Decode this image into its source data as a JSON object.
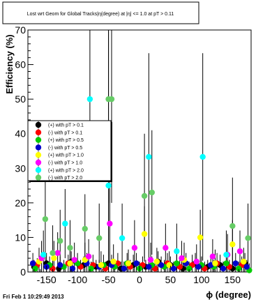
{
  "footer_timestamp": "Fri Feb  1 10:29:49 2013",
  "chart_data": {
    "type": "scatter",
    "title": "Lost wrt Geom for Global Tracks|η(degree) at |η| <= 1.0 at pT > 0.11",
    "xlabel": "ϕ (degree)",
    "ylabel": "Efficiency (%)",
    "xlim": [
      -180,
      180
    ],
    "ylim": [
      0,
      70
    ],
    "x_ticks": [
      -150,
      -100,
      -50,
      0,
      50,
      100,
      150
    ],
    "y_ticks": [
      0,
      10,
      20,
      30,
      40,
      50,
      60,
      70
    ],
    "grid": false,
    "legend_position": "left",
    "series": [
      {
        "name": "(+) with pT > 0.1",
        "color": "#000000",
        "points": [
          {
            "x": -170,
            "y": 1.5,
            "err": 2.0
          },
          {
            "x": -150,
            "y": 2.5,
            "err": 3.0
          },
          {
            "x": -130,
            "y": 1.0,
            "err": 2.0
          },
          {
            "x": -110,
            "y": 3.0,
            "err": 3.0
          },
          {
            "x": -90,
            "y": 2.0,
            "err": 2.5
          },
          {
            "x": -70,
            "y": 1.5,
            "err": 2.0
          },
          {
            "x": -50,
            "y": 2.5,
            "err": 67.0
          },
          {
            "x": -30,
            "y": 1.0,
            "err": 2.0
          },
          {
            "x": -10,
            "y": 2.0,
            "err": 3.0
          },
          {
            "x": 10,
            "y": 1.5,
            "err": 2.0
          },
          {
            "x": 30,
            "y": 3.0,
            "err": 3.0
          },
          {
            "x": 50,
            "y": 2.0,
            "err": 2.5
          },
          {
            "x": 70,
            "y": 1.0,
            "err": 2.0
          },
          {
            "x": 90,
            "y": 2.5,
            "err": 3.0
          },
          {
            "x": 110,
            "y": 1.5,
            "err": 2.0
          },
          {
            "x": 130,
            "y": 2.0,
            "err": 3.0
          },
          {
            "x": 150,
            "y": 1.0,
            "err": 2.0
          },
          {
            "x": 170,
            "y": 2.5,
            "err": 3.0
          }
        ]
      },
      {
        "name": "(-) with pT > 0.1",
        "color": "#ff0000",
        "points": [
          {
            "x": -165,
            "y": 2.0,
            "err": 2.0
          },
          {
            "x": -140,
            "y": 1.0,
            "err": 2.0
          },
          {
            "x": -115,
            "y": 2.5,
            "err": 2.5
          },
          {
            "x": -95,
            "y": 1.5,
            "err": 2.0
          },
          {
            "x": -75,
            "y": 2.0,
            "err": 3.0
          },
          {
            "x": -55,
            "y": 1.0,
            "err": 2.0
          },
          {
            "x": -35,
            "y": 2.5,
            "err": 3.0
          },
          {
            "x": -15,
            "y": 1.5,
            "err": 2.0
          },
          {
            "x": 5,
            "y": 2.0,
            "err": 2.5
          },
          {
            "x": 25,
            "y": 1.0,
            "err": 2.0
          },
          {
            "x": 45,
            "y": 2.5,
            "err": 3.0
          },
          {
            "x": 65,
            "y": 1.5,
            "err": 2.0
          },
          {
            "x": 85,
            "y": 2.0,
            "err": 3.0
          },
          {
            "x": 105,
            "y": 1.0,
            "err": 2.0
          },
          {
            "x": 125,
            "y": 2.5,
            "err": 3.0
          },
          {
            "x": 145,
            "y": 1.5,
            "err": 2.0
          },
          {
            "x": 165,
            "y": 2.0,
            "err": 2.5
          }
        ]
      },
      {
        "name": "(+) with pT > 0.5",
        "color": "#00cc00",
        "points": [
          {
            "x": -168,
            "y": 1.0,
            "err": 2.0
          },
          {
            "x": -145,
            "y": 2.0,
            "err": 2.5
          },
          {
            "x": -122,
            "y": 1.5,
            "err": 2.0
          },
          {
            "x": -100,
            "y": 2.5,
            "err": 3.0
          },
          {
            "x": -78,
            "y": 1.0,
            "err": 2.0
          },
          {
            "x": -58,
            "y": 2.0,
            "err": 3.0
          },
          {
            "x": -40,
            "y": 1.5,
            "err": 2.0
          },
          {
            "x": -20,
            "y": 2.5,
            "err": 3.0
          },
          {
            "x": 0,
            "y": 1.0,
            "err": 2.0
          },
          {
            "x": 20,
            "y": 2.0,
            "err": 2.5
          },
          {
            "x": 40,
            "y": 1.5,
            "err": 2.0
          },
          {
            "x": 60,
            "y": 2.5,
            "err": 3.0
          },
          {
            "x": 80,
            "y": 1.0,
            "err": 2.0
          },
          {
            "x": 100,
            "y": 2.0,
            "err": 2.5
          },
          {
            "x": 120,
            "y": 1.5,
            "err": 2.0
          },
          {
            "x": 140,
            "y": 2.5,
            "err": 3.0
          },
          {
            "x": 160,
            "y": 1.0,
            "err": 2.0
          },
          {
            "x": 177,
            "y": 0.5,
            "err": 2.0
          }
        ]
      },
      {
        "name": "(-) with pT > 0.5",
        "color": "#0000cc",
        "points": [
          {
            "x": -172,
            "y": 2.5,
            "err": 3.0
          },
          {
            "x": -150,
            "y": 1.5,
            "err": 2.0
          },
          {
            "x": -128,
            "y": 2.0,
            "err": 2.5
          },
          {
            "x": -108,
            "y": 1.0,
            "err": 2.0
          },
          {
            "x": -85,
            "y": 2.5,
            "err": 3.0
          },
          {
            "x": -65,
            "y": 1.5,
            "err": 2.0
          },
          {
            "x": -45,
            "y": 2.0,
            "err": 3.0
          },
          {
            "x": -25,
            "y": 1.0,
            "err": 2.0
          },
          {
            "x": -5,
            "y": 2.5,
            "err": 3.0
          },
          {
            "x": 15,
            "y": 1.5,
            "err": 2.0
          },
          {
            "x": 35,
            "y": 2.0,
            "err": 2.5
          },
          {
            "x": 55,
            "y": 1.0,
            "err": 2.0
          },
          {
            "x": 75,
            "y": 2.5,
            "err": 3.0
          },
          {
            "x": 95,
            "y": 1.5,
            "err": 2.0
          },
          {
            "x": 115,
            "y": 2.0,
            "err": 3.0
          },
          {
            "x": 135,
            "y": 1.0,
            "err": 2.0
          },
          {
            "x": 155,
            "y": 2.5,
            "err": 3.0
          },
          {
            "x": 173,
            "y": 1.5,
            "err": 2.0
          }
        ]
      },
      {
        "name": "(+) with pT > 1.0",
        "color": "#ffff00",
        "points": [
          {
            "x": -162,
            "y": 3.0,
            "err": 4.0
          },
          {
            "x": -138,
            "y": 4.0,
            "err": 5.0
          },
          {
            "x": -112,
            "y": 2.5,
            "err": 4.0
          },
          {
            "x": -88,
            "y": 3.5,
            "err": 5.0
          },
          {
            "x": -62,
            "y": 2.0,
            "err": 4.0
          },
          {
            "x": -42,
            "y": 3.0,
            "err": 5.0
          },
          {
            "x": -18,
            "y": 2.5,
            "err": 4.0
          },
          {
            "x": 8,
            "y": 11.0,
            "err": 8.0
          },
          {
            "x": 28,
            "y": 3.0,
            "err": 4.0
          },
          {
            "x": 48,
            "y": 2.0,
            "err": 4.0
          },
          {
            "x": 72,
            "y": 3.5,
            "err": 5.0
          },
          {
            "x": 98,
            "y": 10.0,
            "err": 8.0
          },
          {
            "x": 122,
            "y": 2.5,
            "err": 4.0
          },
          {
            "x": 150,
            "y": 8.0,
            "err": 7.0
          },
          {
            "x": 168,
            "y": 3.0,
            "err": 4.0
          }
        ]
      },
      {
        "name": "(-) with pT > 1.0",
        "color": "#ff00ff",
        "points": [
          {
            "x": -158,
            "y": 4.0,
            "err": 5.0
          },
          {
            "x": -132,
            "y": 5.5,
            "err": 6.0
          },
          {
            "x": -105,
            "y": 3.5,
            "err": 5.0
          },
          {
            "x": -82,
            "y": 4.5,
            "err": 5.0
          },
          {
            "x": -48,
            "y": 14.0,
            "err": 12.0
          },
          {
            "x": -8,
            "y": 7.0,
            "err": 8.0
          },
          {
            "x": 18,
            "y": 3.5,
            "err": 5.0
          },
          {
            "x": 42,
            "y": 7.0,
            "err": 7.0
          },
          {
            "x": 68,
            "y": 4.0,
            "err": 5.0
          },
          {
            "x": 92,
            "y": 3.0,
            "err": 5.0
          },
          {
            "x": 118,
            "y": 4.5,
            "err": 5.0
          },
          {
            "x": 142,
            "y": 5.0,
            "err": 6.0
          },
          {
            "x": 162,
            "y": 6.0,
            "err": 6.0
          }
        ]
      },
      {
        "name": "(+) with pT > 2.0",
        "color": "#00ffff",
        "points": [
          {
            "x": -155,
            "y": 5.0,
            "err": 7.0
          },
          {
            "x": -120,
            "y": 14.0,
            "err": 10.0
          },
          {
            "x": -80,
            "y": 50.0,
            "err": 20.0
          },
          {
            "x": -50,
            "y": 25.0,
            "err": 45.0
          },
          {
            "x": -28,
            "y": 9.8,
            "err": 10.0
          },
          {
            "x": 15,
            "y": 33.3,
            "err": 30.0
          },
          {
            "x": 60,
            "y": 6.0,
            "err": 8.0
          },
          {
            "x": 102,
            "y": 33.3,
            "err": 30.0
          },
          {
            "x": 140,
            "y": 5.0,
            "err": 7.0
          }
        ]
      },
      {
        "name": "(-) with pT > 2.0",
        "color": "#66cc66",
        "points": [
          {
            "x": -152,
            "y": 15.3,
            "err": 12.0
          },
          {
            "x": -140,
            "y": 5.5,
            "err": 8.0
          },
          {
            "x": -128,
            "y": 9.0,
            "err": 9.0
          },
          {
            "x": -112,
            "y": 7.0,
            "err": 8.0
          },
          {
            "x": -88,
            "y": 12.5,
            "err": 10.0
          },
          {
            "x": -65,
            "y": 9.8,
            "err": 10.0
          },
          {
            "x": -50,
            "y": 50.0,
            "err": 30.0
          },
          {
            "x": -45,
            "y": 50.0,
            "err": 30.0
          },
          {
            "x": 8,
            "y": 22.0,
            "err": 18.0
          },
          {
            "x": 20,
            "y": 23.0,
            "err": 18.0
          },
          {
            "x": 150,
            "y": 13.3,
            "err": 14.0
          },
          {
            "x": 175,
            "y": 9.8,
            "err": 10.0
          }
        ]
      }
    ]
  }
}
